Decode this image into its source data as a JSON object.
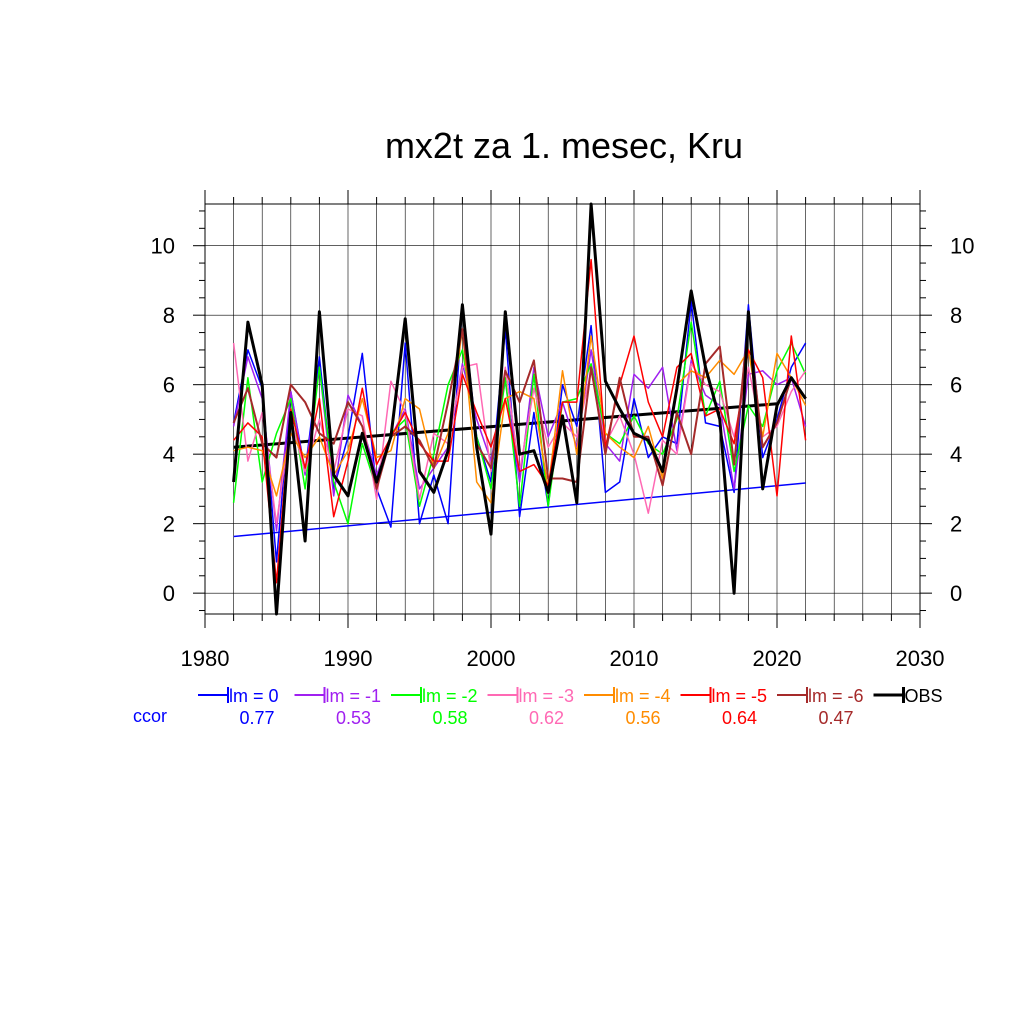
{
  "chart_data": {
    "type": "line",
    "title": "mx2t za 1. mesec, Kru",
    "xlabel": "",
    "ylabel": "",
    "xlim": [
      1980,
      2030
    ],
    "ylim": [
      -0.6,
      11.2
    ],
    "x_ticks": [
      "1980",
      "1990",
      "2000",
      "2010",
      "2020",
      "2030"
    ],
    "y_ticks": [
      "0",
      "2",
      "4",
      "6",
      "8",
      "10"
    ],
    "grid": true,
    "x": [
      1982,
      1983,
      1984,
      1985,
      1986,
      1987,
      1988,
      1989,
      1990,
      1991,
      1992,
      1993,
      1994,
      1995,
      1996,
      1997,
      1998,
      1999,
      2000,
      2001,
      2002,
      2003,
      2004,
      2005,
      2006,
      2007,
      2008,
      2009,
      2010,
      2011,
      2012,
      2013,
      2014,
      2015,
      2016,
      2017,
      2018,
      2019,
      2020,
      2021,
      2022
    ],
    "series": [
      {
        "name": "lm = 0",
        "color": "#0000ff",
        "width": 1.5,
        "values": [
          4.9,
          7.0,
          5.9,
          0.9,
          5.8,
          3.5,
          6.8,
          3.0,
          4.5,
          6.9,
          3.0,
          1.9,
          7.2,
          2.0,
          3.4,
          2.0,
          8.3,
          4.5,
          3.2,
          7.6,
          2.2,
          5.2,
          2.5,
          6.0,
          4.8,
          7.7,
          2.9,
          3.2,
          5.6,
          3.9,
          4.5,
          4.3,
          8.4,
          4.9,
          4.8,
          2.9,
          8.3,
          3.9,
          5.0,
          6.5,
          7.2
        ]
      },
      {
        "name": "lm = -1",
        "color": "#a020f0",
        "width": 1.5,
        "values": [
          4.8,
          6.8,
          5.6,
          1.8,
          5.8,
          3.4,
          6.5,
          2.8,
          5.7,
          4.8,
          3.4,
          4.5,
          5.3,
          3.0,
          3.6,
          4.2,
          6.6,
          5.0,
          3.8,
          6.1,
          3.2,
          6.5,
          4.5,
          5.5,
          4.2,
          7.0,
          4.3,
          3.8,
          6.3,
          5.9,
          6.5,
          4.1,
          6.7,
          5.7,
          5.4,
          3.0,
          6.3,
          6.4,
          6.0,
          6.2,
          4.8
        ]
      },
      {
        "name": "lm = -2",
        "color": "#00ff00",
        "width": 1.5,
        "values": [
          2.6,
          6.2,
          3.2,
          4.6,
          5.6,
          3.0,
          6.5,
          3.2,
          2.0,
          4.3,
          3.0,
          4.6,
          5.0,
          2.5,
          4.0,
          6.0,
          7.0,
          4.5,
          3.0,
          6.2,
          2.5,
          6.3,
          2.5,
          5.5,
          5.6,
          6.6,
          4.6,
          4.3,
          5.1,
          4.3,
          4.0,
          5.0,
          7.8,
          5.1,
          6.1,
          3.5,
          5.4,
          4.8,
          6.4,
          7.2,
          6.3
        ]
      },
      {
        "name": "lm = -3",
        "color": "#ff69b4",
        "width": 1.5,
        "values": [
          7.2,
          3.8,
          5.2,
          2.0,
          5.0,
          3.5,
          5.0,
          3.5,
          5.3,
          5.1,
          2.7,
          6.1,
          5.2,
          2.7,
          4.6,
          4.3,
          6.5,
          6.6,
          3.5,
          6.5,
          3.5,
          5.9,
          4.2,
          4.9,
          4.5,
          6.4,
          4.3,
          5.1,
          4.0,
          2.3,
          4.4,
          4.0,
          6.6,
          6.0,
          5.8,
          4.5,
          6.5,
          4.5,
          4.8,
          5.8,
          6.4
        ]
      },
      {
        "name": "lm = -4",
        "color": "#ff8c00",
        "width": 1.5,
        "values": [
          4.1,
          4.2,
          4.1,
          2.8,
          4.6,
          3.9,
          4.5,
          3.4,
          4.1,
          5.6,
          3.9,
          4.1,
          5.6,
          5.3,
          3.6,
          4.6,
          7.6,
          3.2,
          2.6,
          5.6,
          5.8,
          5.6,
          3.0,
          6.4,
          4.0,
          7.4,
          4.6,
          4.2,
          3.9,
          4.8,
          3.3,
          6.0,
          6.4,
          6.2,
          6.7,
          6.3,
          7.0,
          4.5,
          6.9,
          6.2,
          5.4
        ]
      },
      {
        "name": "lm = -5",
        "color": "#ff0000",
        "width": 1.5,
        "values": [
          4.4,
          4.9,
          4.5,
          0.3,
          5.3,
          3.6,
          5.6,
          2.2,
          3.8,
          5.9,
          3.7,
          4.5,
          5.2,
          4.3,
          3.8,
          3.8,
          6.3,
          5.2,
          4.2,
          5.6,
          3.5,
          3.7,
          3.1,
          5.5,
          5.5,
          9.6,
          4.2,
          6.0,
          7.4,
          5.5,
          4.5,
          6.5,
          6.9,
          5.1,
          5.3,
          4.3,
          7.0,
          6.2,
          2.8,
          7.4,
          4.4
        ]
      },
      {
        "name": "lm = -6",
        "color": "#a52a2a",
        "width": 2,
        "values": [
          4.9,
          5.9,
          4.3,
          3.9,
          6.0,
          5.5,
          4.6,
          4.3,
          5.5,
          4.8,
          3.0,
          4.5,
          4.8,
          4.4,
          3.6,
          5.5,
          7.6,
          4.3,
          3.6,
          6.4,
          5.5,
          6.7,
          3.3,
          3.3,
          3.2,
          6.5,
          4.0,
          6.2,
          4.5,
          4.5,
          3.1,
          5.2,
          4.0,
          6.6,
          7.1,
          3.7,
          7.8,
          4.2,
          4.9,
          6.2,
          5.6
        ]
      },
      {
        "name": "OBS",
        "color": "#000000",
        "width": 3,
        "values": [
          3.2,
          7.8,
          6.0,
          -0.6,
          5.2,
          1.5,
          8.1,
          3.4,
          2.8,
          4.6,
          3.2,
          4.5,
          7.9,
          3.5,
          2.9,
          4.1,
          8.3,
          4.2,
          1.7,
          8.1,
          4.0,
          4.1,
          2.9,
          5.1,
          2.6,
          11.2,
          6.1,
          5.3,
          4.6,
          4.4,
          3.5,
          5.9,
          8.7,
          6.5,
          5.0,
          0.0,
          8.1,
          3.0,
          5.4,
          6.2,
          5.6
        ]
      }
    ],
    "trend_lines": [
      {
        "color": "#0000ff",
        "width": 1.5,
        "x": [
          1982,
          2022
        ],
        "y": [
          1.63,
          3.17
        ]
      },
      {
        "color": "#000000",
        "width": 3,
        "x": [
          1982,
          2020
        ],
        "y": [
          4.2,
          5.45
        ]
      }
    ],
    "legend": {
      "placement": "bottom",
      "items": [
        {
          "label": "lm = 0",
          "color": "#0000ff",
          "width": 2
        },
        {
          "label": "lm = -1",
          "color": "#a020f0",
          "width": 2
        },
        {
          "label": "lm = -2",
          "color": "#00ff00",
          "width": 2
        },
        {
          "label": "lm = -3",
          "color": "#ff69b4",
          "width": 2
        },
        {
          "label": "lm = -4",
          "color": "#ff8c00",
          "width": 2
        },
        {
          "label": "lm = -5",
          "color": "#ff0000",
          "width": 2
        },
        {
          "label": "lm = -6",
          "color": "#a52a2a",
          "width": 2
        },
        {
          "label": "OBS",
          "color": "#000000",
          "width": 3
        }
      ]
    },
    "correlation": {
      "label": "ccor",
      "label_color": "#0000ff",
      "values": [
        "0.77",
        "0.53",
        "0.58",
        "0.62",
        "0.56",
        "0.64",
        "0.47"
      ],
      "colors": [
        "#0000ff",
        "#a020f0",
        "#00ff00",
        "#ff69b4",
        "#ff8c00",
        "#ff0000",
        "#a52a2a"
      ]
    }
  }
}
